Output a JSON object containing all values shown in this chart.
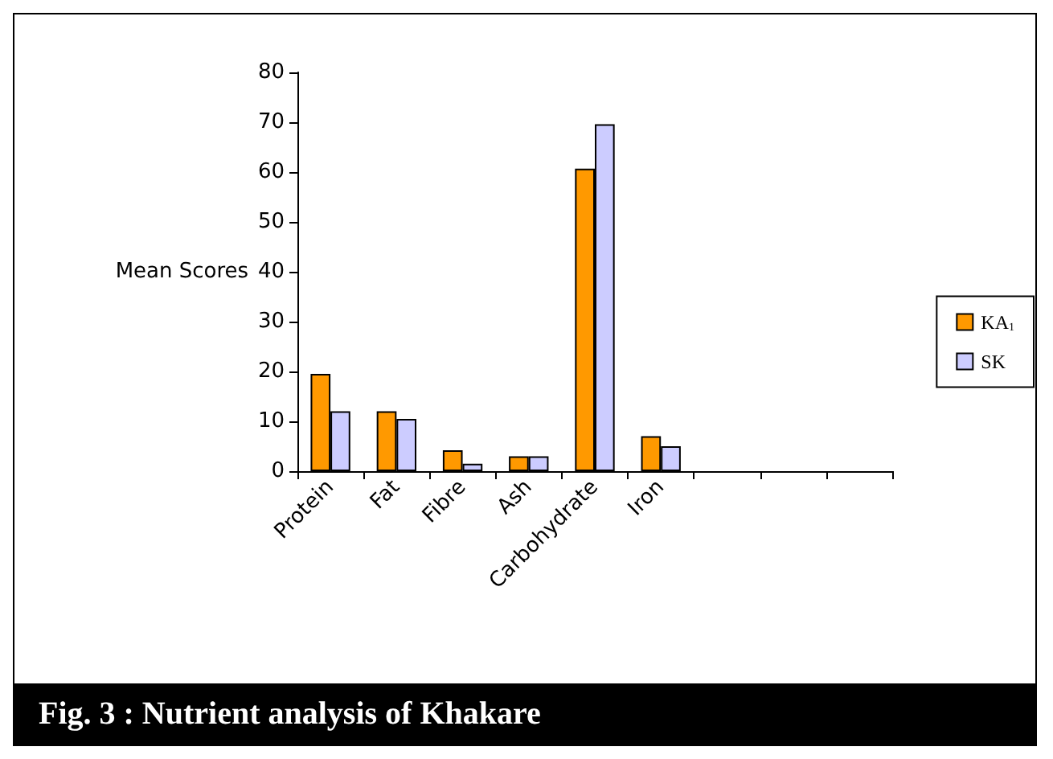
{
  "chart_data": {
    "type": "bar",
    "title": "Fig. 3 : Nutrient analysis of Khakare",
    "ylabel": "Mean Scores",
    "categories": [
      "Protein",
      "Fat",
      "Fibre",
      "Ash",
      "Carbohydrate",
      "Iron",
      null,
      null,
      null
    ],
    "series": [
      {
        "name": "KA$_{1}$",
        "color": "#ff9900",
        "values": [
          19.5,
          12,
          4.2,
          3,
          60.7,
          7,
          null,
          null,
          null
        ]
      },
      {
        "name": "SK",
        "color": "#ccccff",
        "values": [
          12,
          10.5,
          1.5,
          3,
          69.6,
          5,
          null,
          null,
          null
        ]
      }
    ],
    "ylim": [
      0,
      80
    ],
    "yticks": [
      0,
      10,
      20,
      30,
      40,
      50,
      60,
      70,
      80
    ],
    "grid": false,
    "legend": "right"
  }
}
